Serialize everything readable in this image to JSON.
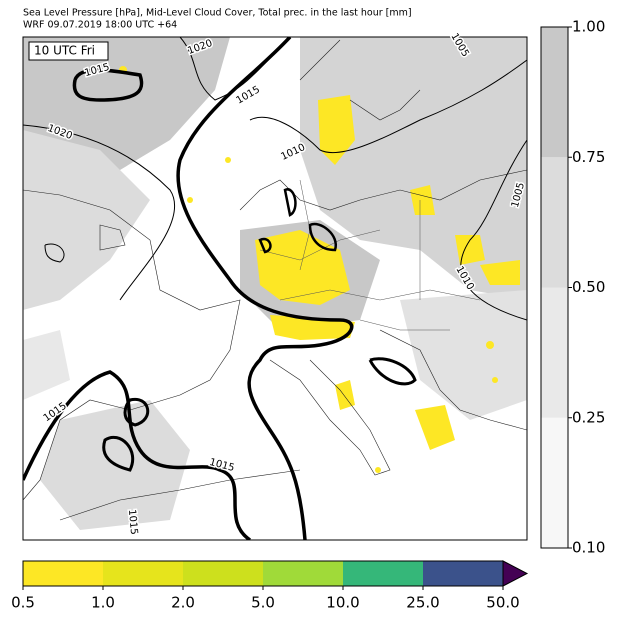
{
  "header": {
    "title": "Sea Level Pressure [hPa], Mid-Level Cloud Cover, Total prec. in the last hour [mm]",
    "subtitle": "WRF 09.07.2019 18:00 UTC +64"
  },
  "time_label": "10 UTC Fri",
  "isobar_labels": [
    "1020",
    "1015",
    "1015",
    "1020",
    "1010",
    "1005",
    "1005",
    "1010",
    "1015",
    "1015",
    "1015"
  ],
  "cloud_colorbar": {
    "ticks": [
      {
        "value": 0.1,
        "label": "0.10"
      },
      {
        "value": 0.25,
        "label": "0.25"
      },
      {
        "value": 0.5,
        "label": "0.50"
      },
      {
        "value": 0.75,
        "label": "0.75"
      },
      {
        "value": 1,
        "label": "1.00"
      }
    ],
    "colors": [
      "#f7f7f7",
      "#e9e9e9",
      "#dcdcdc",
      "#c8c8c8"
    ]
  },
  "precip_colorbar": {
    "ticks": [
      0.5,
      {
        "value": 1,
        "label": "1.0"
      },
      {
        "value": 2,
        "label": "2.0"
      },
      {
        "value": 5,
        "label": "5.0"
      },
      {
        "value": 10,
        "label": "10.0"
      },
      {
        "value": 25,
        "label": "25.0"
      },
      {
        "value": 50,
        "label": "50.0"
      }
    ],
    "colors": [
      "#fde725",
      "#e6e41c",
      "#cde01d",
      "#a0da39",
      "#35b779",
      "#3b528b",
      "#440154"
    ]
  }
}
